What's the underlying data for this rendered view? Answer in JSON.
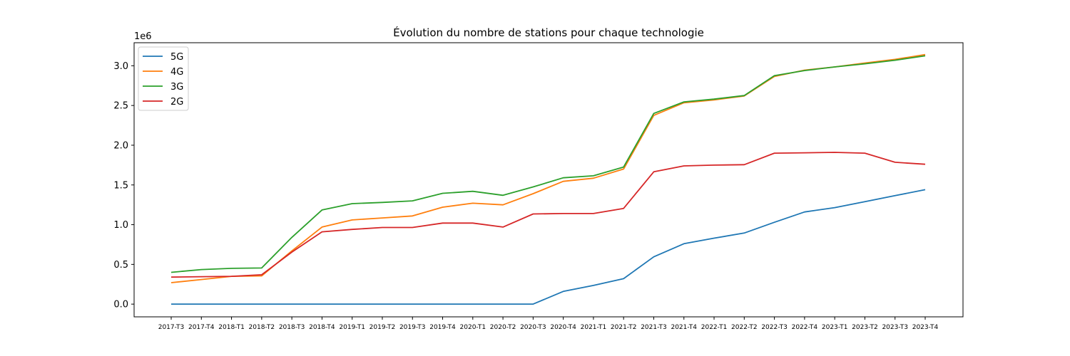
{
  "chart_data": {
    "type": "line",
    "title": "Évolution du nombre de stations pour chaque technologie",
    "xlabel": "",
    "ylabel": "",
    "y_offset_label": "1e6",
    "categories": [
      "2017-T3",
      "2017-T4",
      "2018-T1",
      "2018-T2",
      "2018-T3",
      "2018-T4",
      "2019-T1",
      "2019-T2",
      "2019-T3",
      "2019-T4",
      "2020-T1",
      "2020-T2",
      "2020-T3",
      "2020-T4",
      "2021-T1",
      "2021-T2",
      "2021-T3",
      "2021-T4",
      "2022-T1",
      "2022-T2",
      "2022-T3",
      "2022-T4",
      "2023-T1",
      "2023-T2",
      "2023-T3",
      "2023-T4"
    ],
    "ylim": [
      -0.16,
      3.29
    ],
    "yticks": [
      0.0,
      0.5,
      1.0,
      1.5,
      2.0,
      2.5,
      3.0
    ],
    "ytick_labels": [
      "0.0",
      "0.5",
      "1.0",
      "1.5",
      "2.0",
      "2.5",
      "3.0"
    ],
    "grid": false,
    "legend_position": "top-left",
    "series": [
      {
        "name": "5G",
        "color": "#1f77b4",
        "values": [
          0,
          0,
          0,
          0,
          0,
          0,
          0,
          0,
          0,
          0,
          0,
          0,
          0,
          0.16,
          0.235,
          0.32,
          0.595,
          0.76,
          0.83,
          0.895,
          1.03,
          1.16,
          1.215,
          1.29,
          1.365,
          1.44
        ]
      },
      {
        "name": "4G",
        "color": "#ff7f0e",
        "values": [
          0.27,
          0.31,
          0.35,
          0.355,
          0.67,
          0.97,
          1.06,
          1.085,
          1.11,
          1.22,
          1.27,
          1.25,
          1.39,
          1.545,
          1.585,
          1.7,
          2.375,
          2.535,
          2.57,
          2.62,
          2.865,
          2.945,
          2.985,
          3.035,
          3.08,
          3.14
        ]
      },
      {
        "name": "3G",
        "color": "#2ca02c",
        "values": [
          0.4,
          0.435,
          0.45,
          0.455,
          0.84,
          1.185,
          1.265,
          1.28,
          1.3,
          1.395,
          1.42,
          1.37,
          1.475,
          1.59,
          1.615,
          1.725,
          2.4,
          2.545,
          2.58,
          2.625,
          2.875,
          2.94,
          2.985,
          3.025,
          3.07,
          3.125
        ]
      },
      {
        "name": "2G",
        "color": "#d62728",
        "values": [
          0.34,
          0.345,
          0.35,
          0.37,
          0.655,
          0.91,
          0.94,
          0.965,
          0.965,
          1.02,
          1.02,
          0.97,
          1.135,
          1.14,
          1.14,
          1.205,
          1.665,
          1.74,
          1.75,
          1.755,
          1.9,
          1.905,
          1.91,
          1.9,
          1.785,
          1.76
        ]
      }
    ]
  }
}
